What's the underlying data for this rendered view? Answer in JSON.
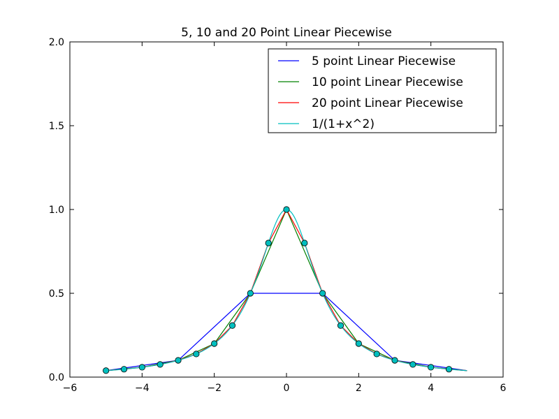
{
  "chart_data": {
    "type": "line",
    "title": "5, 10 and 20 Point Linear Piecewise",
    "xlabel": "",
    "ylabel": "",
    "xlim": [
      -6,
      6
    ],
    "ylim": [
      0.0,
      2.0
    ],
    "x_ticks": [
      -6,
      -4,
      -2,
      0,
      2,
      4,
      6
    ],
    "x_tick_labels": [
      "−6",
      "−4",
      "−2",
      "0",
      "2",
      "4",
      "6"
    ],
    "y_ticks": [
      0.0,
      0.5,
      1.0,
      1.5,
      2.0
    ],
    "y_tick_labels": [
      "0.0",
      "0.5",
      "1.0",
      "1.5",
      "2.0"
    ],
    "grid": false,
    "legend_position": "top-right",
    "series": [
      {
        "name": "5 point Linear Piecewise",
        "color": "#0000ff",
        "x": [
          -5,
          -3,
          -1,
          1,
          3,
          5
        ],
        "y": [
          0.0385,
          0.1,
          0.5,
          0.5,
          0.1,
          0.0385
        ]
      },
      {
        "name": "10 point Linear Piecewise",
        "color": "#008000",
        "x": [
          -5,
          -4,
          -3,
          -2,
          -1,
          0,
          1,
          2,
          3,
          4,
          5
        ],
        "y": [
          0.0385,
          0.0588,
          0.1,
          0.2,
          0.5,
          1.0,
          0.5,
          0.2,
          0.1,
          0.0588,
          0.0385
        ]
      },
      {
        "name": "20 point Linear Piecewise",
        "color": "#ff0000",
        "x": [
          -5,
          -4.5,
          -4,
          -3.5,
          -3,
          -2.5,
          -2,
          -1.5,
          -1,
          -0.5,
          0,
          0.5,
          1,
          1.5,
          2,
          2.5,
          3,
          3.5,
          4,
          4.5,
          5
        ],
        "y": [
          0.0385,
          0.0471,
          0.0588,
          0.0755,
          0.1,
          0.1379,
          0.2,
          0.3077,
          0.5,
          0.8,
          1.0,
          0.8,
          0.5,
          0.3077,
          0.2,
          0.1379,
          0.1,
          0.0755,
          0.0588,
          0.0471,
          0.0385
        ]
      },
      {
        "name": "1/(1+x^2)",
        "color": "#00bfbf",
        "function": "1/(1+x^2)",
        "x_range": [
          -5,
          5
        ]
      }
    ],
    "markers": {
      "color": "#00bfbf",
      "stroke": "#000000",
      "x": [
        -5,
        -4.5,
        -4,
        -3.5,
        -3,
        -2.5,
        -2,
        -1.5,
        -1,
        -0.5,
        0,
        0.5,
        1,
        1.5,
        2,
        2.5,
        3,
        3.5,
        4,
        4.5
      ],
      "y": [
        0.0385,
        0.0471,
        0.0588,
        0.0755,
        0.1,
        0.1379,
        0.2,
        0.3077,
        0.5,
        0.8,
        1.0,
        0.8,
        0.5,
        0.3077,
        0.2,
        0.1379,
        0.1,
        0.0755,
        0.0588,
        0.0471
      ]
    }
  }
}
